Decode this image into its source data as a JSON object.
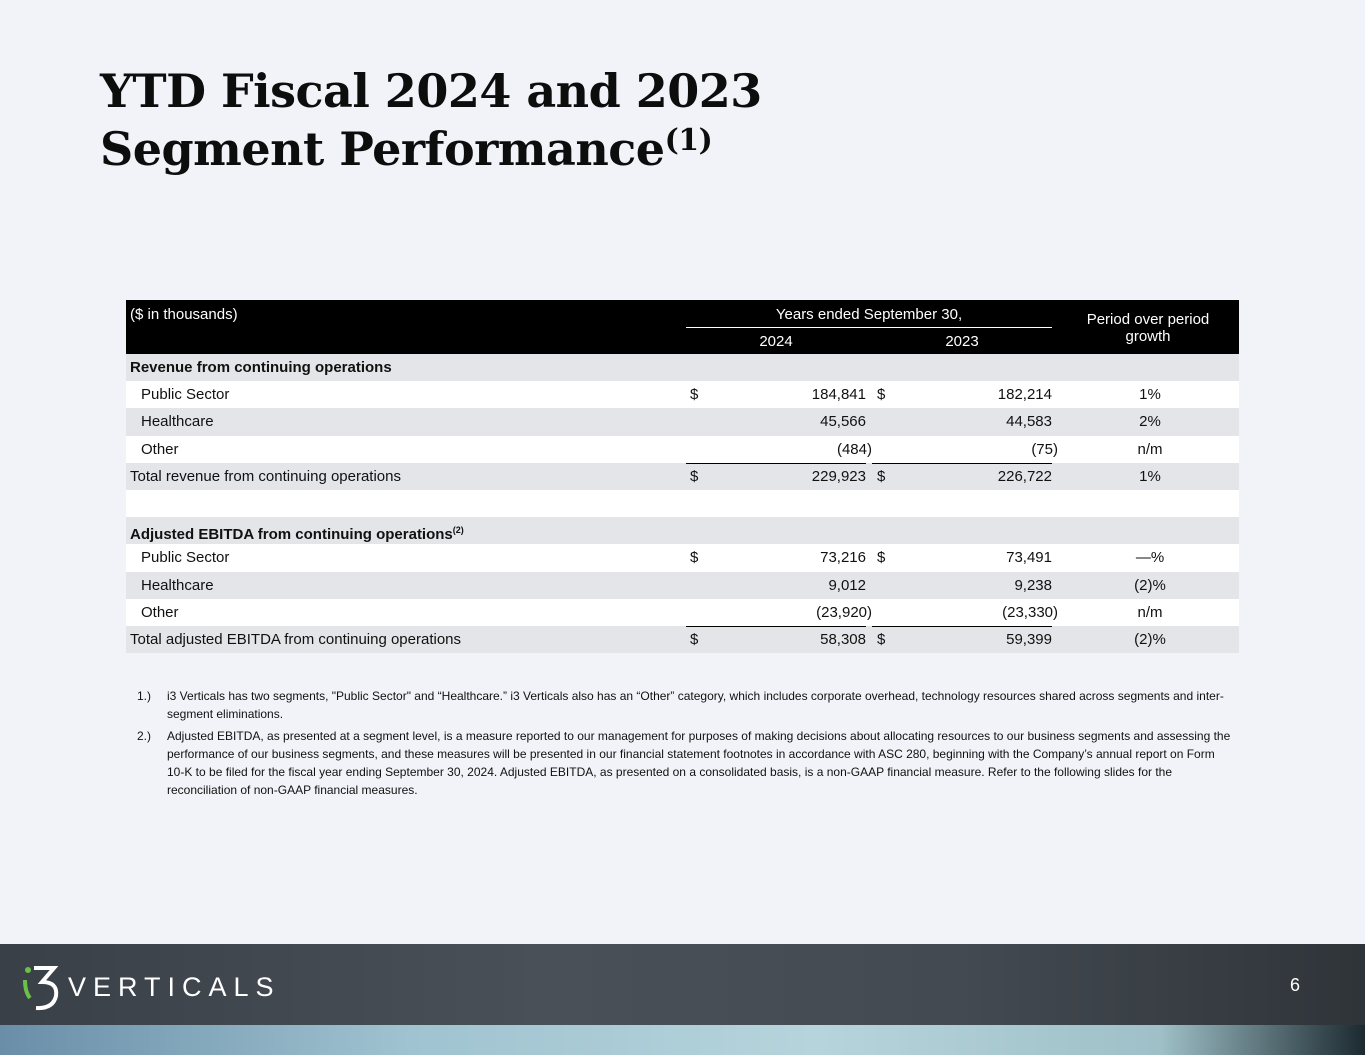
{
  "title": {
    "line1": "YTD Fiscal 2024 and 2023",
    "line2": "Segment Performance",
    "sup": "(1)"
  },
  "table": {
    "units": "($ in thousands)",
    "years_header": "Years ended September 30,",
    "col_2024": "2024",
    "col_2023": "2023",
    "growth_header": "Period over period growth",
    "rows": [
      {
        "label": "Revenue from continuing operations",
        "type": "section"
      },
      {
        "label": "Public Sector",
        "d1": "$",
        "v1": "184,841",
        "d2": "$",
        "v2": "182,214",
        "growth": "1%",
        "type": "item"
      },
      {
        "label": "Healthcare",
        "v1": "45,566",
        "v2": "44,583",
        "growth": "2%",
        "type": "item"
      },
      {
        "label": "Other",
        "v1": "(484)",
        "v2": "(75)",
        "growth": "n/m",
        "type": "item"
      },
      {
        "label": "Total revenue from continuing operations",
        "d1": "$",
        "v1": "229,923",
        "d2": "$",
        "v2": "226,722",
        "growth": "1%",
        "type": "total"
      },
      {
        "label": "",
        "type": "blank"
      },
      {
        "label": "Adjusted EBITDA from continuing operations",
        "sup": "(2)",
        "type": "section"
      },
      {
        "label": "Public Sector",
        "d1": "$",
        "v1": "73,216",
        "d2": "$",
        "v2": "73,491",
        "growth": "—%",
        "type": "item"
      },
      {
        "label": "Healthcare",
        "v1": "9,012",
        "v2": "9,238",
        "growth": "(2)%",
        "type": "item"
      },
      {
        "label": "Other",
        "v1": "(23,920)",
        "v2": "(23,330)",
        "growth": "n/m",
        "type": "item"
      },
      {
        "label": "Total adjusted EBITDA from continuing operations",
        "d1": "$",
        "v1": "58,308",
        "d2": "$",
        "v2": "59,399",
        "growth": "(2)%",
        "type": "total"
      }
    ]
  },
  "footnotes": [
    {
      "num": "1.)",
      "text": "i3 Verticals has two segments, \"Public Sector\" and “Healthcare.”  i3 Verticals also has an “Other” category, which includes corporate overhead, technology resources shared across segments and inter-segment eliminations."
    },
    {
      "num": "2.)",
      "text": "Adjusted EBITDA, as presented at a segment level, is a measure reported to our management for purposes of making decisions about allocating resources to our business segments and assessing the performance of our business segments, and these measures will be presented in our financial statement footnotes in accordance with ASC 280, beginning with the Company’s annual report on Form 10-K to be filed for the fiscal year ending September 30, 2024. Adjusted EBITDA, as presented on a consolidated basis, is a non-GAAP financial measure. Refer to the following slides for the reconciliation of non-GAAP financial measures."
    }
  ],
  "footer": {
    "logo_text": "VERTICALS",
    "page_number": "6",
    "accent": "#6cc04a"
  }
}
